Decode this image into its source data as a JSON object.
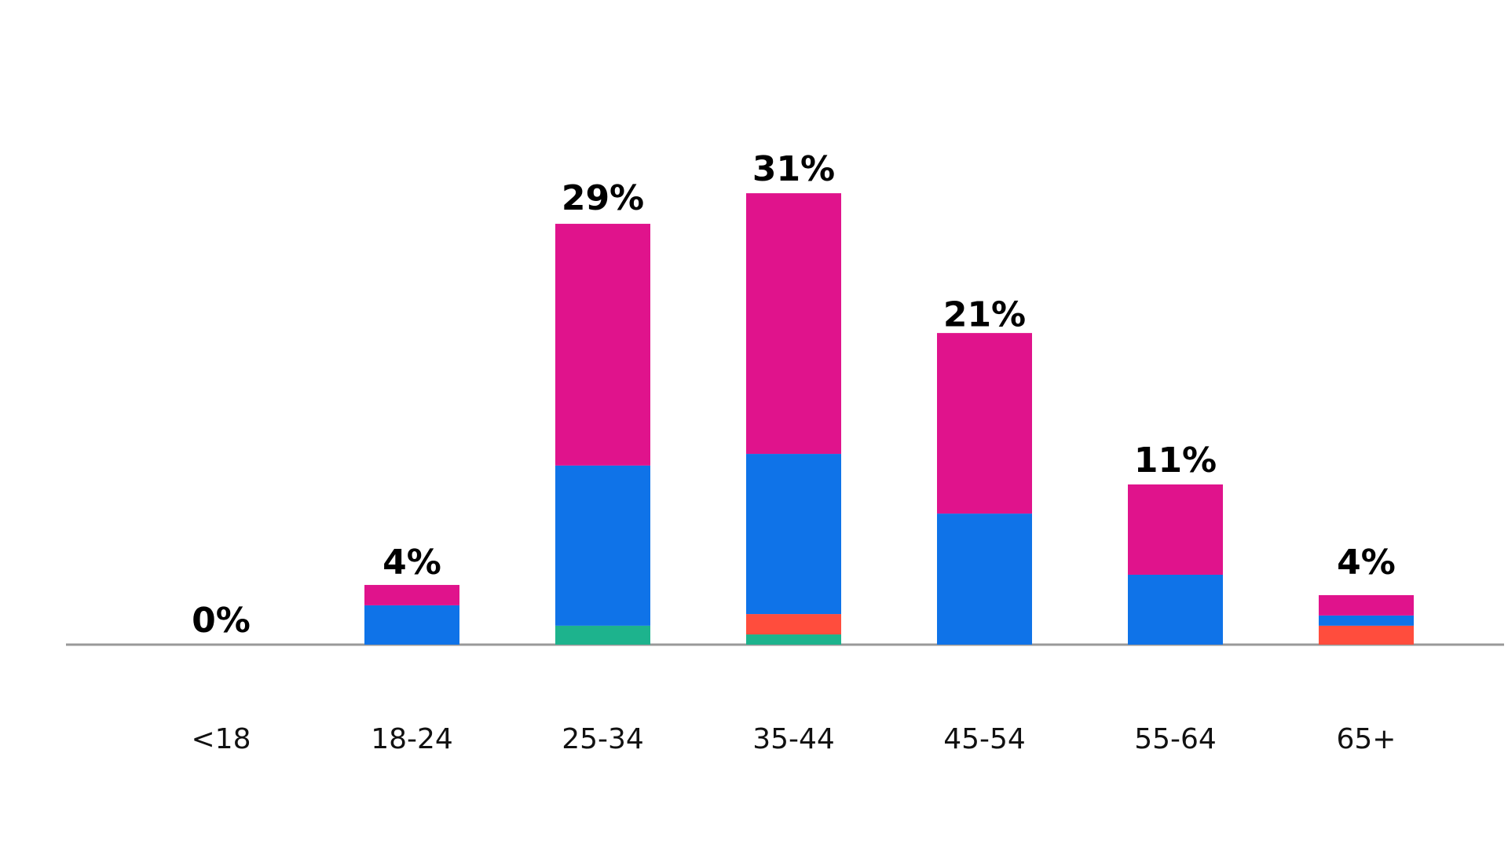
{
  "chart_data": {
    "type": "stacked_bar",
    "categories": [
      "<18",
      "18-24",
      "25-34",
      "35-44",
      "45-54",
      "55-64",
      "65+"
    ],
    "series": [
      {
        "color": "#1db38d",
        "values": [
          0,
          0,
          1.3,
          0.7,
          0,
          0,
          0
        ]
      },
      {
        "color": "#ff4d3d",
        "values": [
          0,
          0,
          0,
          1.4,
          0,
          0,
          1.3
        ]
      },
      {
        "color": "#0f73e8",
        "values": [
          0,
          2.7,
          11.0,
          11.0,
          9.0,
          4.8,
          0.7
        ]
      },
      {
        "color": "#e0138c",
        "values": [
          0,
          1.4,
          16.6,
          17.9,
          12.4,
          6.2,
          1.4
        ]
      }
    ],
    "totals": {
      "values": [
        0,
        4,
        29,
        31,
        21,
        11,
        4
      ],
      "value_labels": [
        "0%",
        "4%",
        "29%",
        "31%",
        "21%",
        "11%",
        "4%"
      ]
    },
    "ylim": [
      0,
      33
    ]
  }
}
